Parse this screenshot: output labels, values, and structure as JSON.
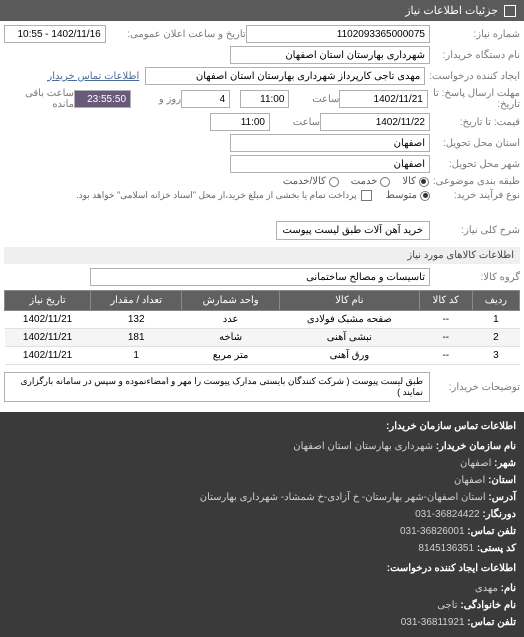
{
  "header": {
    "title": "جزئیات اطلاعات نیاز"
  },
  "form": {
    "request_no": {
      "label": "شماره نیاز:",
      "value": "1102093365000075"
    },
    "announce_dt": {
      "label": "تاریخ و ساعت اعلان عمومی:",
      "value": "1402/11/16 - 10:55"
    },
    "buyer_org": {
      "label": "نام دستگاه خریدار:",
      "value": "شهرداری بهارستان استان اصفهان"
    },
    "requester": {
      "label": "ایجاد کننده درخواست:",
      "value": "مهدی تاجی کارپرداز شهرداری بهارستان استان اصفهان"
    },
    "contact_link": "اطلاعات تماس خریدار",
    "deadline_resp": {
      "label": "مهلت ارسال پاسخ: تا تاریخ:",
      "date": "1402/11/21",
      "time_label": "ساعت",
      "time": "11:00",
      "days": "4",
      "days_label": "روز و",
      "remain": "23:55:50",
      "remain_label": "ساعت باقی مانده"
    },
    "price_until": {
      "label": "قیمت: تا تاریخ:",
      "date": "1402/11/22",
      "time_label": "ساعت",
      "time": "11:00"
    },
    "delivery_province": {
      "label": "استان محل تحویل:",
      "value": "اصفهان"
    },
    "delivery_city": {
      "label": "شهر محل تحویل:",
      "value": "اصفهان"
    },
    "classification": {
      "label": "طبقه بندی موضوعی:",
      "options": [
        {
          "label": "کالا",
          "checked": true
        },
        {
          "label": "خدمت",
          "checked": false
        },
        {
          "label": "کالا/خدمت",
          "checked": false
        }
      ]
    },
    "purchase_type": {
      "label": "نوع فرآیند خرید:",
      "options": [
        {
          "label": "متوسط",
          "checked": true
        }
      ],
      "checkbox_note": "پرداخت تمام یا بخشی از مبلغ خرید،از محل \"اسناد خزانه اسلامی\" خواهد بود."
    },
    "need_desc": {
      "label": "شرح کلی نیاز:",
      "value": "خرید آهن آلات طبق لیست پیوست"
    }
  },
  "goods_section": {
    "title": "اطلاعات کالاهای مورد نیاز",
    "group": {
      "label": "گروه کالا:",
      "value": "تاسیسات و مصالح ساختمانی"
    },
    "table": {
      "headers": [
        "ردیف",
        "کد کالا",
        "نام کالا",
        "واحد شمارش",
        "تعداد / مقدار",
        "تاریخ نیاز"
      ],
      "rows": [
        [
          "1",
          "--",
          "صفحه مشبک فولادی",
          "عدد",
          "132",
          "1402/11/21"
        ],
        [
          "2",
          "--",
          "نبشی آهنی",
          "شاخه",
          "181",
          "1402/11/21"
        ],
        [
          "3",
          "--",
          "ورق آهنی",
          "متر مربع",
          "1",
          "1402/11/21"
        ]
      ]
    },
    "buyer_notes": {
      "label": "توضیحات خریدار:",
      "value": "طبق لیست پیوست ( شرکت کنندگان بایستی مدارک پیوست را مهر و امضاءنموده و سپس در سامانه بارگزاری نمایند )"
    }
  },
  "contact": {
    "title": "اطلاعات تماس سازمان خریدار:",
    "org": {
      "label": "نام سازمان خریدار:",
      "value": "شهرداری بهارستان استان اصفهان"
    },
    "city": {
      "label": "شهر:",
      "value": "اصفهان"
    },
    "province": {
      "label": "استان:",
      "value": "اصفهان"
    },
    "address": {
      "label": "آدرس:",
      "value": "استان اصفهان-شهر بهارستان- خ آزادی-خ شمشاد- شهرداری بهارستان"
    },
    "fax": {
      "label": "دورنگار:",
      "value": "36824422-031"
    },
    "phone": {
      "label": "تلفن تماس:",
      "value": "36826001-031"
    },
    "postal": {
      "label": "کد پستی:",
      "value": "8145136351"
    },
    "creator_title": "اطلاعات ایجاد کننده درخواست:",
    "first": {
      "label": "نام:",
      "value": "مهدی"
    },
    "last": {
      "label": "نام خانوادگی:",
      "value": "تاجی"
    },
    "tel": {
      "label": "تلفن تماس:",
      "value": "36811921-031"
    }
  }
}
